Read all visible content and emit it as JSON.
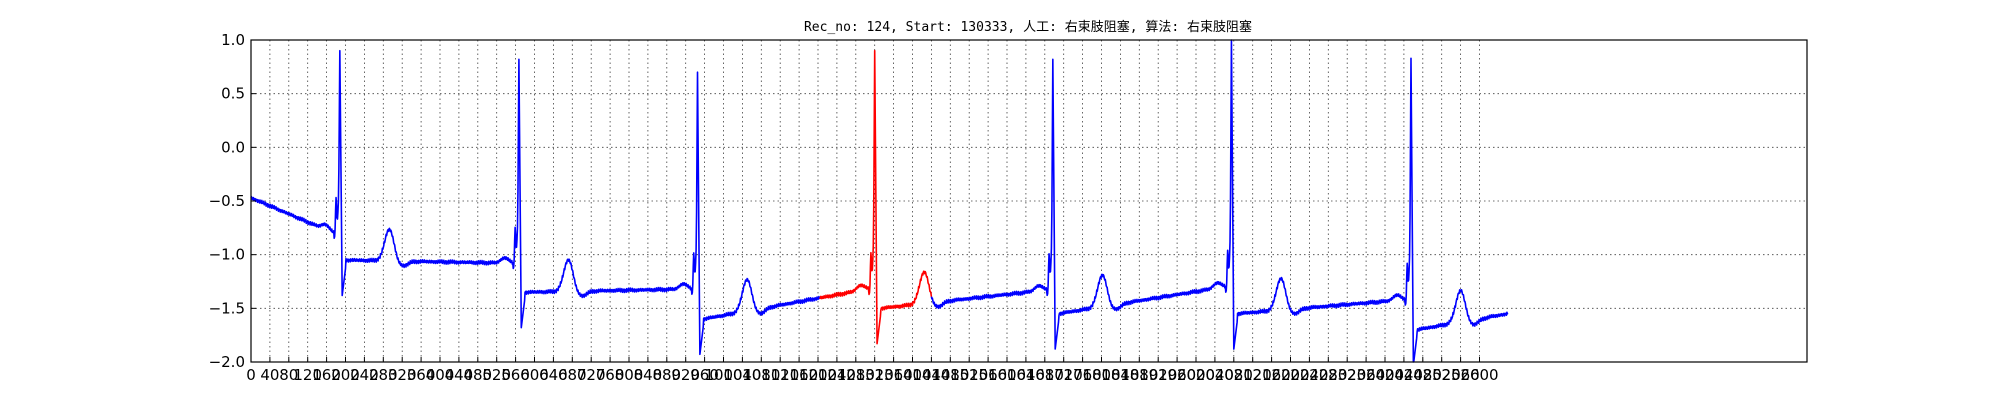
{
  "chart_data": {
    "type": "line",
    "title": "Rec_no: 124, Start: 130333, 人工: 右束肢阻塞, 算法: 右束肢阻塞",
    "xlabel": "",
    "ylabel": "",
    "xlim": [
      0,
      4000
    ],
    "ylim": [
      -2.0,
      1.0
    ],
    "grid": true,
    "y_ticks": [
      "1.0",
      "0.5",
      "0.0",
      "−0.5",
      "−1.0",
      "−1.5",
      "−2.0"
    ],
    "y_tick_values": [
      1.0,
      0.5,
      0.0,
      -0.5,
      -1.0,
      -1.5,
      -2.0
    ],
    "x_tick_labels": [
      "0",
      "40",
      "80",
      "120",
      "160",
      "200",
      "240",
      "280",
      "320",
      "360",
      "400",
      "440",
      "480",
      "520",
      "560",
      "600",
      "640",
      "680",
      "720",
      "760",
      "800",
      "840",
      "880",
      "920",
      "960",
      "1000",
      "1040",
      "1080",
      "1120",
      "1160",
      "1200",
      "1240",
      "1280",
      "1320",
      "1360",
      "1400",
      "1440",
      "1480",
      "1520",
      "1560",
      "1600",
      "1640",
      "1680",
      "1720",
      "1760",
      "1800",
      "1840",
      "1880",
      "1920",
      "1960",
      "2000",
      "2040",
      "2080",
      "2120",
      "2160",
      "2200",
      "2240",
      "2280",
      "2320",
      "2360",
      "2400",
      "2440",
      "2480",
      "2520",
      "2560",
      "2600"
    ],
    "x_tick_values": [
      0,
      40,
      80,
      120,
      160,
      200,
      240,
      280,
      320,
      360,
      400,
      440,
      480,
      520,
      560,
      600,
      640,
      680,
      720,
      760,
      800,
      840,
      880,
      920,
      960,
      1000,
      1040,
      1080,
      1120,
      1160,
      1200,
      1240,
      1280,
      1320,
      1360,
      1400,
      1440,
      1480,
      1520,
      1560,
      1600,
      1640,
      1680,
      1720,
      1760,
      1800,
      1840,
      1880,
      1920,
      1960,
      2000,
      2040,
      2080,
      2120,
      2160,
      2200,
      2240,
      2280,
      2320,
      2360,
      2400,
      2440,
      2480,
      2520,
      2560,
      2600
    ],
    "series_style": {
      "ecg_color": "#0000ff",
      "highlight_color": "#ff0000"
    },
    "beats": [
      {
        "r_x": 188,
        "r_amp": 0.9
      },
      {
        "r_x": 567,
        "r_amp": 0.82
      },
      {
        "r_x": 945,
        "r_amp": 0.7
      },
      {
        "r_x": 1320,
        "r_amp": 0.9
      },
      {
        "r_x": 1697,
        "r_amp": 0.82
      },
      {
        "r_x": 2075,
        "r_amp": 1.0
      },
      {
        "r_x": 2455,
        "r_amp": 0.83
      }
    ],
    "baselines": [
      {
        "x_start": 0,
        "x_end": 175,
        "y_start": -0.47,
        "y_end": -0.8
      },
      {
        "x_start": 200,
        "x_end": 555,
        "y_start": -1.05,
        "y_end": -1.08
      },
      {
        "x_start": 580,
        "x_end": 932,
        "y_start": -1.35,
        "y_end": -1.32
      },
      {
        "x_start": 957,
        "x_end": 1308,
        "y_start": -1.6,
        "y_end": -1.32
      },
      {
        "x_start": 1332,
        "x_end": 1684,
        "y_start": -1.5,
        "y_end": -1.33
      },
      {
        "x_start": 1709,
        "x_end": 2062,
        "y_start": -1.55,
        "y_end": -1.3
      },
      {
        "x_start": 2087,
        "x_end": 2442,
        "y_start": -1.55,
        "y_end": -1.42
      },
      {
        "x_start": 2467,
        "x_end": 2660,
        "y_start": -1.7,
        "y_end": -1.55
      }
    ],
    "highlight_range": [
      1205,
      1440
    ]
  }
}
